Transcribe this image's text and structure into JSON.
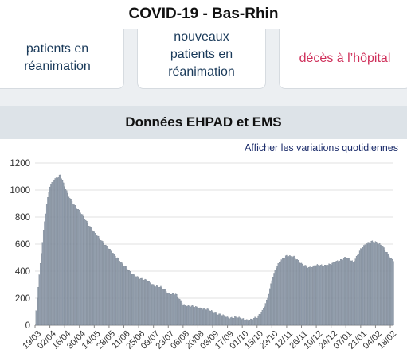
{
  "header": {
    "title": "COVID-19 - Bas-Rhin"
  },
  "cards": [
    {
      "label": "patients en réanimation"
    },
    {
      "label": "nouveaux patients en réanimation"
    },
    {
      "label": "décès à l’hôpital"
    }
  ],
  "section": {
    "title": "Données EHPAD et EMS"
  },
  "chart": {
    "toggle_label": "Afficher les variations quotidiennes"
  },
  "colors": {
    "bar": "#9aa6b5",
    "bar_stroke": "#5f6b7a",
    "accent_red": "#cf2f5a",
    "link": "#1c2d6b"
  },
  "chart_data": {
    "type": "bar",
    "title": "",
    "xlabel": "",
    "ylabel": "",
    "ylim": [
      0,
      1200
    ],
    "yticks": [
      0,
      200,
      400,
      600,
      800,
      1000,
      1200
    ],
    "grid": true,
    "tick_labels": [
      "19/03",
      "02/04",
      "16/04",
      "30/04",
      "14/05",
      "28/05",
      "11/06",
      "25/06",
      "09/07",
      "23/07",
      "06/08",
      "20/08",
      "03/09",
      "17/09",
      "01/10",
      "15/10",
      "29/10",
      "12/11",
      "26/11",
      "10/12",
      "24/12",
      "07/01",
      "21/01",
      "04/02",
      "18/02"
    ],
    "anchors": [
      [
        "19/03",
        0
      ],
      [
        "21/03",
        200
      ],
      [
        "24/03",
        450
      ],
      [
        "27/03",
        700
      ],
      [
        "30/03",
        900
      ],
      [
        "02/04",
        1030
      ],
      [
        "06/04",
        1070
      ],
      [
        "10/04",
        1100
      ],
      [
        "12/04",
        1115
      ],
      [
        "16/04",
        1030
      ],
      [
        "20/04",
        950
      ],
      [
        "24/04",
        900
      ],
      [
        "30/04",
        850
      ],
      [
        "07/05",
        760
      ],
      [
        "14/05",
        690
      ],
      [
        "21/05",
        620
      ],
      [
        "28/05",
        570
      ],
      [
        "04/06",
        500
      ],
      [
        "11/06",
        450
      ],
      [
        "18/06",
        380
      ],
      [
        "25/06",
        355
      ],
      [
        "02/07",
        330
      ],
      [
        "09/07",
        300
      ],
      [
        "16/07",
        280
      ],
      [
        "23/07",
        240
      ],
      [
        "30/07",
        230
      ],
      [
        "06/08",
        155
      ],
      [
        "13/08",
        140
      ],
      [
        "20/08",
        130
      ],
      [
        "27/08",
        120
      ],
      [
        "03/09",
        100
      ],
      [
        "10/09",
        80
      ],
      [
        "17/09",
        55
      ],
      [
        "24/09",
        60
      ],
      [
        "01/10",
        45
      ],
      [
        "08/10",
        40
      ],
      [
        "15/10",
        55
      ],
      [
        "20/10",
        110
      ],
      [
        "25/10",
        200
      ],
      [
        "29/10",
        330
      ],
      [
        "02/11",
        430
      ],
      [
        "06/11",
        480
      ],
      [
        "12/11",
        510
      ],
      [
        "19/11",
        510
      ],
      [
        "26/11",
        450
      ],
      [
        "03/12",
        430
      ],
      [
        "10/12",
        440
      ],
      [
        "17/12",
        445
      ],
      [
        "24/12",
        450
      ],
      [
        "31/12",
        480
      ],
      [
        "07/01",
        500
      ],
      [
        "14/01",
        470
      ],
      [
        "21/01",
        560
      ],
      [
        "27/01",
        605
      ],
      [
        "31/01",
        625
      ],
      [
        "04/02",
        615
      ],
      [
        "08/02",
        595
      ],
      [
        "11/02",
        580
      ],
      [
        "15/02",
        540
      ],
      [
        "18/02",
        500
      ],
      [
        "21/02",
        475
      ]
    ]
  }
}
